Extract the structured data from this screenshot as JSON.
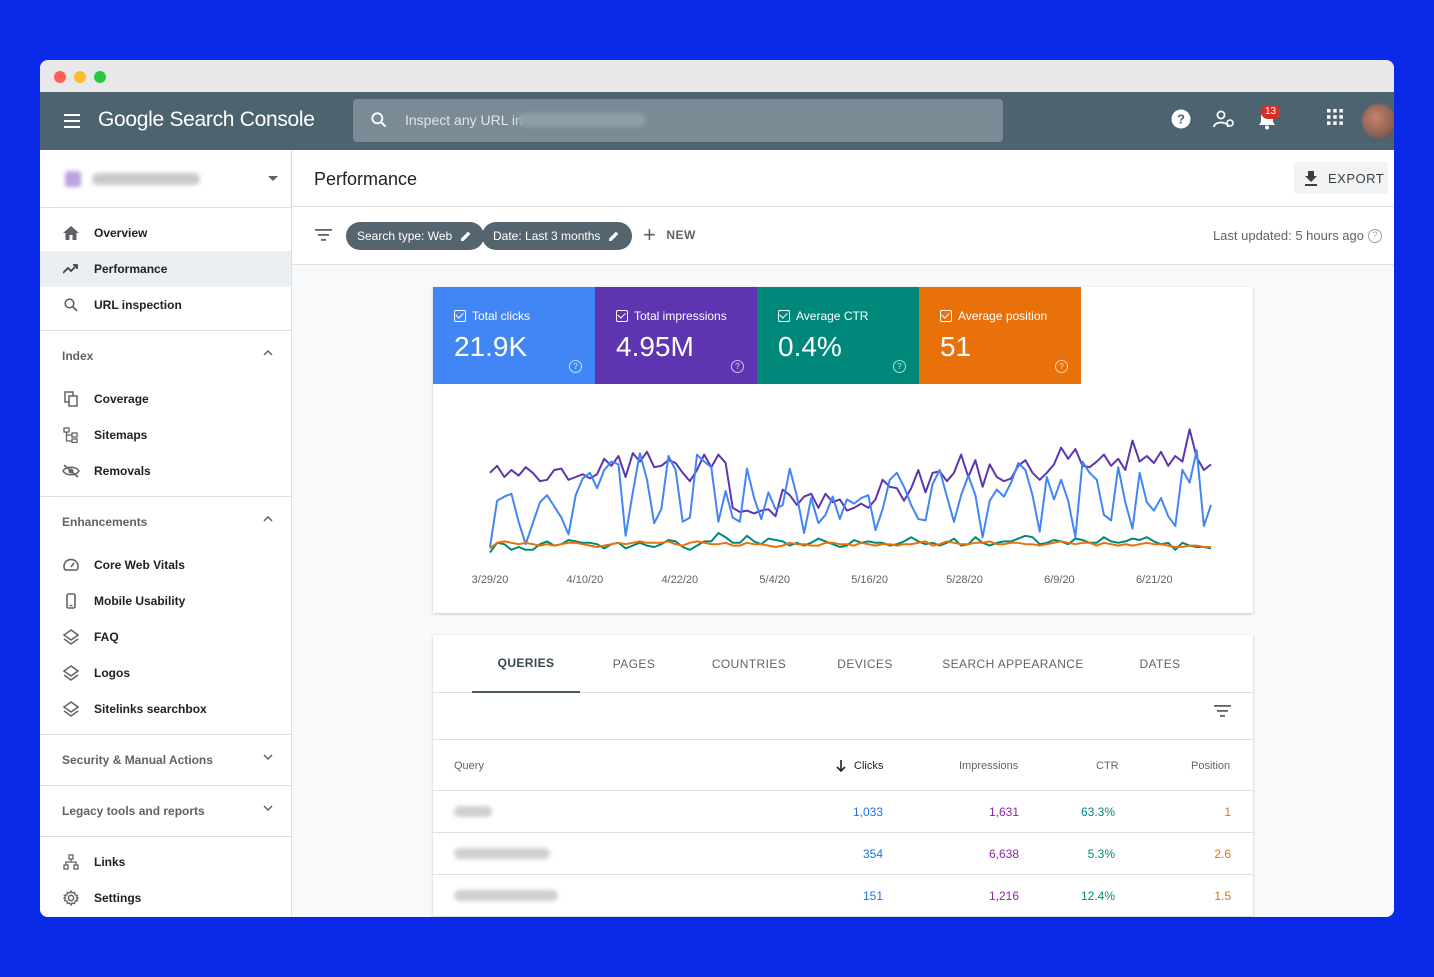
{
  "app": {
    "logo": "Google Search Console",
    "search_placeholder": "Inspect any URL in",
    "notifications_count": "13"
  },
  "sidebar": {
    "main_items": [
      {
        "label": "Overview",
        "icon": "home-icon"
      },
      {
        "label": "Performance",
        "icon": "trending-up-icon",
        "active": true
      },
      {
        "label": "URL inspection",
        "icon": "search-icon"
      }
    ],
    "index": {
      "title": "Index",
      "items": [
        {
          "label": "Coverage",
          "icon": "copy-icon"
        },
        {
          "label": "Sitemaps",
          "icon": "sitemap-icon"
        },
        {
          "label": "Removals",
          "icon": "eye-off-icon"
        }
      ]
    },
    "enhancements": {
      "title": "Enhancements",
      "items": [
        {
          "label": "Core Web Vitals",
          "icon": "speedometer-icon"
        },
        {
          "label": "Mobile Usability",
          "icon": "phone-icon"
        },
        {
          "label": "FAQ",
          "icon": "layers-icon"
        },
        {
          "label": "Logos",
          "icon": "layers-icon"
        },
        {
          "label": "Sitelinks searchbox",
          "icon": "layers-icon"
        }
      ]
    },
    "security": "Security & Manual Actions",
    "legacy": "Legacy tools and reports",
    "bottom_items": [
      {
        "label": "Links",
        "icon": "links-icon"
      },
      {
        "label": "Settings",
        "icon": "gear-icon"
      }
    ]
  },
  "page": {
    "title": "Performance",
    "export_label": "EXPORT",
    "chips": [
      "Search type: Web",
      "Date: Last 3 months"
    ],
    "new_label": "NEW",
    "last_updated": "Last updated: 5 hours ago"
  },
  "metrics": [
    {
      "label": "Total clicks",
      "value": "21.9K",
      "color": "#4285f4"
    },
    {
      "label": "Total impressions",
      "value": "4.95M",
      "color": "#5e35b1"
    },
    {
      "label": "Average CTR",
      "value": "0.4%",
      "color": "#00897b"
    },
    {
      "label": "Average position",
      "value": "51",
      "color": "#e8710a"
    }
  ],
  "chart_data": {
    "type": "line",
    "x_ticks": [
      "3/29/20",
      "4/10/20",
      "4/22/20",
      "5/4/20",
      "5/16/20",
      "5/28/20",
      "6/9/20",
      "6/21/20"
    ],
    "series": [
      {
        "color": "#5e35b1",
        "values": [
          58,
          63,
          55,
          60,
          56,
          62,
          58,
          52,
          53,
          60,
          61,
          53,
          55,
          57,
          54,
          57,
          68,
          63,
          70,
          55,
          72,
          66,
          73,
          62,
          63,
          67,
          65,
          58,
          52,
          60,
          71,
          62,
          71,
          65,
          33,
          30,
          31,
          29,
          31,
          32,
          27,
          46,
          42,
          35,
          41,
          43,
          33,
          43,
          37,
          39,
          31,
          33,
          36,
          33,
          39,
          53,
          48,
          47,
          38,
          47,
          60,
          44,
          58,
          59,
          52,
          58,
          71,
          55,
          67,
          48,
          64,
          55,
          52,
          54,
          63,
          67,
          58,
          53,
          58,
          64,
          76,
          68,
          75,
          63,
          62,
          66,
          71,
          63,
          68,
          60,
          81,
          66,
          70,
          65,
          73,
          63,
          70,
          66,
          89,
          69,
          60,
          64
        ]
      },
      {
        "color": "#4285f4",
        "values": [
          5,
          38,
          41,
          43,
          23,
          7,
          22,
          37,
          42,
          34,
          26,
          14,
          42,
          54,
          58,
          47,
          60,
          66,
          64,
          13,
          44,
          72,
          53,
          22,
          32,
          70,
          60,
          23,
          26,
          71,
          66,
          62,
          23,
          45,
          26,
          23,
          61,
          40,
          25,
          44,
          32,
          35,
          61,
          41,
          15,
          40,
          22,
          28,
          41,
          25,
          39,
          36,
          40,
          42,
          17,
          32,
          53,
          58,
          48,
          35,
          25,
          24,
          50,
          60,
          41,
          23,
          42,
          56,
          42,
          12,
          38,
          46,
          41,
          51,
          65,
          60,
          42,
          16,
          55,
          39,
          53,
          38,
          12,
          66,
          58,
          53,
          28,
          24,
          62,
          37,
          18,
          58,
          37,
          31,
          40,
          27,
          20,
          60,
          51,
          74,
          20,
          35
        ]
      },
      {
        "color": "#00897b",
        "values": [
          1,
          8,
          7,
          3,
          5,
          3,
          3,
          7,
          9,
          6,
          7,
          10,
          9,
          8,
          8,
          7,
          4,
          7,
          8,
          4,
          6,
          8,
          6,
          5,
          7,
          10,
          9,
          5,
          3,
          6,
          9,
          9,
          15,
          12,
          8,
          8,
          13,
          9,
          7,
          11,
          10,
          9,
          6,
          8,
          6,
          8,
          11,
          9,
          7,
          5,
          6,
          10,
          8,
          9,
          8,
          8,
          6,
          7,
          9,
          12,
          9,
          7,
          8,
          6,
          8,
          11,
          6,
          7,
          12,
          8,
          6,
          8,
          9,
          9,
          11,
          13,
          12,
          7,
          8,
          10,
          9,
          7,
          11,
          10,
          8,
          8,
          12,
          9,
          8,
          9,
          11,
          10,
          12,
          9,
          7,
          8,
          3,
          8,
          6,
          5,
          5,
          4
        ]
      },
      {
        "color": "#e8710a",
        "values": [
          4,
          8,
          9,
          8,
          7,
          8,
          7,
          6,
          7,
          6,
          7,
          8,
          8,
          7,
          6,
          5,
          6,
          7,
          8,
          7,
          8,
          9,
          8,
          8,
          8,
          9,
          7,
          6,
          8,
          9,
          8,
          7,
          7,
          8,
          6,
          6,
          8,
          7,
          7,
          6,
          5,
          6,
          8,
          7,
          7,
          6,
          6,
          8,
          8,
          7,
          7,
          6,
          8,
          7,
          6,
          7,
          7,
          6,
          7,
          7,
          8,
          9,
          6,
          7,
          9,
          8,
          7,
          7,
          8,
          8,
          9,
          7,
          7,
          8,
          8,
          7,
          7,
          6,
          7,
          8,
          9,
          8,
          7,
          8,
          8,
          6,
          8,
          7,
          6,
          7,
          6,
          7,
          8,
          7,
          7,
          6,
          5,
          5,
          6,
          6,
          5,
          5
        ]
      }
    ]
  },
  "tabs": [
    "QUERIES",
    "PAGES",
    "COUNTRIES",
    "DEVICES",
    "SEARCH APPEARANCE",
    "DATES"
  ],
  "table": {
    "headers": {
      "query": "Query",
      "clicks": "Clicks",
      "impressions": "Impressions",
      "ctr": "CTR",
      "position": "Position"
    },
    "rows": [
      {
        "clicks": "1,033",
        "impressions": "1,631",
        "ctr": "63.3%",
        "position": "1"
      },
      {
        "clicks": "354",
        "impressions": "6,638",
        "ctr": "5.3%",
        "position": "2.6"
      },
      {
        "clicks": "151",
        "impressions": "1,216",
        "ctr": "12.4%",
        "position": "1.5"
      }
    ]
  }
}
